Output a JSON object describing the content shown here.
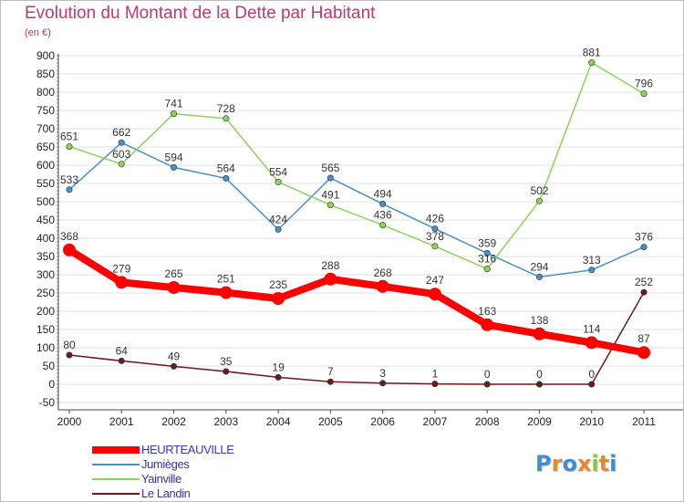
{
  "title": "Evolution du Montant de la Dette par Habitant",
  "unit_label": "(en €)",
  "logo": {
    "text": "Proxiti",
    "letters": [
      {
        "ch": "P",
        "color": "#3d8fd6"
      },
      {
        "ch": "r",
        "color": "#e8892b"
      },
      {
        "ch": "o",
        "color": "#3d8fd6"
      },
      {
        "ch": "x",
        "color": "#e8892b"
      },
      {
        "ch": "i",
        "color": "#8cc63f"
      },
      {
        "ch": "t",
        "color": "#e8892b"
      },
      {
        "ch": "i",
        "color": "#3d8fd6"
      }
    ]
  },
  "chart_data": {
    "type": "line",
    "title": "Evolution du Montant de la Dette par Habitant",
    "ylabel": "(en €)",
    "xlabel": "",
    "x": [
      "2000",
      "2001",
      "2002",
      "2003",
      "2004",
      "2005",
      "2006",
      "2007",
      "2008",
      "2009",
      "2010",
      "2011"
    ],
    "ylim": [
      -50,
      900
    ],
    "yticks": [
      -50,
      0,
      50,
      100,
      150,
      200,
      250,
      300,
      350,
      400,
      450,
      500,
      550,
      600,
      650,
      700,
      750,
      800,
      850,
      900
    ],
    "grid": "horizontal",
    "legend_position": "bottom-left",
    "series": [
      {
        "name": "HEURTEAUVILLE",
        "color": "#ff0000",
        "bold": true,
        "values": [
          368,
          279,
          265,
          251,
          235,
          288,
          268,
          247,
          163,
          138,
          114,
          87
        ]
      },
      {
        "name": "Jumièges",
        "color": "#4a90c8",
        "bold": false,
        "values": [
          533,
          662,
          594,
          564,
          424,
          565,
          494,
          426,
          359,
          294,
          313,
          376
        ]
      },
      {
        "name": "Yainville",
        "color": "#8bd35a",
        "bold": false,
        "values": [
          651,
          603,
          741,
          728,
          554,
          491,
          436,
          378,
          316,
          502,
          881,
          796
        ]
      },
      {
        "name": "Le Landin",
        "color": "#6b1a1a",
        "bold": false,
        "values": [
          80,
          64,
          49,
          35,
          19,
          7,
          3,
          1,
          0,
          0,
          0,
          252
        ]
      }
    ]
  }
}
